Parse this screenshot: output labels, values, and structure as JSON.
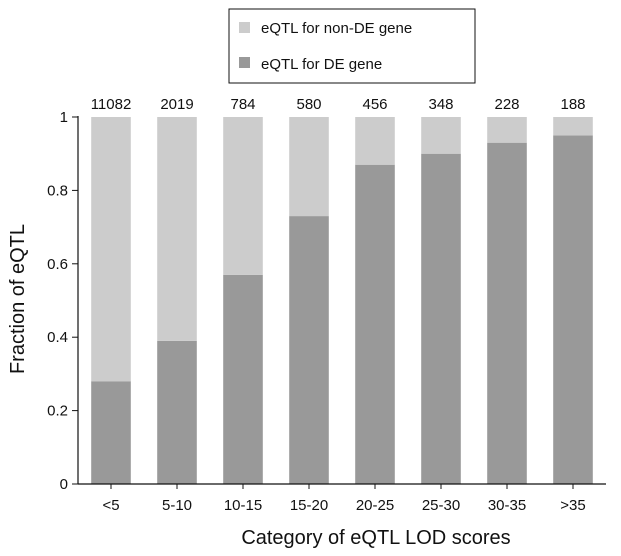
{
  "chart_data": {
    "type": "bar",
    "stacked": true,
    "title": "",
    "xlabel": "Category of eQTL LOD scores",
    "ylabel": "Fraction of eQTL",
    "ylim": [
      0,
      1
    ],
    "yticks": [
      0,
      0.2,
      0.4,
      0.6,
      0.8,
      1
    ],
    "ytick_labels": [
      "0",
      "0.2",
      "0.4",
      "0.6",
      "0.8",
      "1"
    ],
    "categories": [
      "<5",
      "5-10",
      "10-15",
      "15-20",
      "20-25",
      "25-30",
      "30-35",
      ">35"
    ],
    "bar_counts": [
      "11082",
      "2019",
      "784",
      "580",
      "456",
      "348",
      "228",
      "188"
    ],
    "series": [
      {
        "name": "eQTL for DE gene",
        "color": "#999999",
        "values": [
          0.28,
          0.39,
          0.57,
          0.73,
          0.87,
          0.9,
          0.93,
          0.95
        ]
      },
      {
        "name": "eQTL for non-DE gene",
        "color": "#cccccc",
        "values": [
          0.72,
          0.61,
          0.43,
          0.27,
          0.13,
          0.1,
          0.07,
          0.05
        ]
      }
    ],
    "legend": {
      "placement": "top",
      "entries": [
        "eQTL for non-DE gene",
        "eQTL for DE gene"
      ]
    },
    "grid": false
  }
}
